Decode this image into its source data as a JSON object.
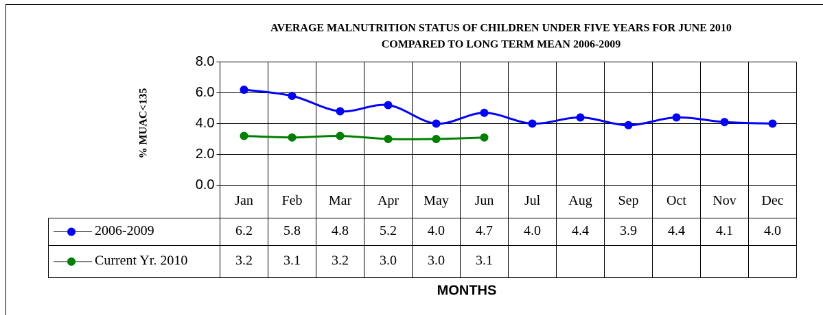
{
  "chart_data": {
    "type": "line",
    "title": "AVERAGE MALNUTRITION STATUS OF CHILDREN UNDER FIVE YEARS FOR JUNE 2010",
    "subtitle": "COMPARED TO LONG TERM MEAN 2006-2009",
    "y_label": "% MUAC<135",
    "x_label": "MONTHS",
    "categories": [
      "Jan",
      "Feb",
      "Mar",
      "Apr",
      "May",
      "Jun",
      "Jul",
      "Aug",
      "Sep",
      "Oct",
      "Nov",
      "Dec"
    ],
    "series": [
      {
        "name": "2006-2009",
        "color": "#0000ff",
        "values": [
          6.2,
          5.8,
          4.8,
          5.2,
          4.0,
          4.7,
          4.0,
          4.4,
          3.9,
          4.4,
          4.1,
          4.0
        ],
        "value_labels": [
          "6.2",
          "5.8",
          "4.8",
          "5.2",
          "4.0",
          "4.7",
          "4.0",
          "4.4",
          "3.9",
          "4.4",
          "4.1",
          "4.0"
        ]
      },
      {
        "name": "Current Yr. 2010",
        "color": "#008000",
        "values": [
          3.2,
          3.1,
          3.2,
          3.0,
          3.0,
          3.1,
          null,
          null,
          null,
          null,
          null,
          null
        ],
        "value_labels": [
          "3.2",
          "3.1",
          "3.2",
          "3.0",
          "3.0",
          "3.1",
          null,
          null,
          null,
          null,
          null,
          null
        ]
      }
    ],
    "ylim": [
      0,
      8
    ],
    "yticks": [
      {
        "value": 0,
        "label": "0.0"
      },
      {
        "value": 2,
        "label": "2.0"
      },
      {
        "value": 4,
        "label": "4.0"
      },
      {
        "value": 6,
        "label": "6.0"
      },
      {
        "value": 8,
        "label": "8.0"
      }
    ],
    "grid": true,
    "data_table": true
  }
}
